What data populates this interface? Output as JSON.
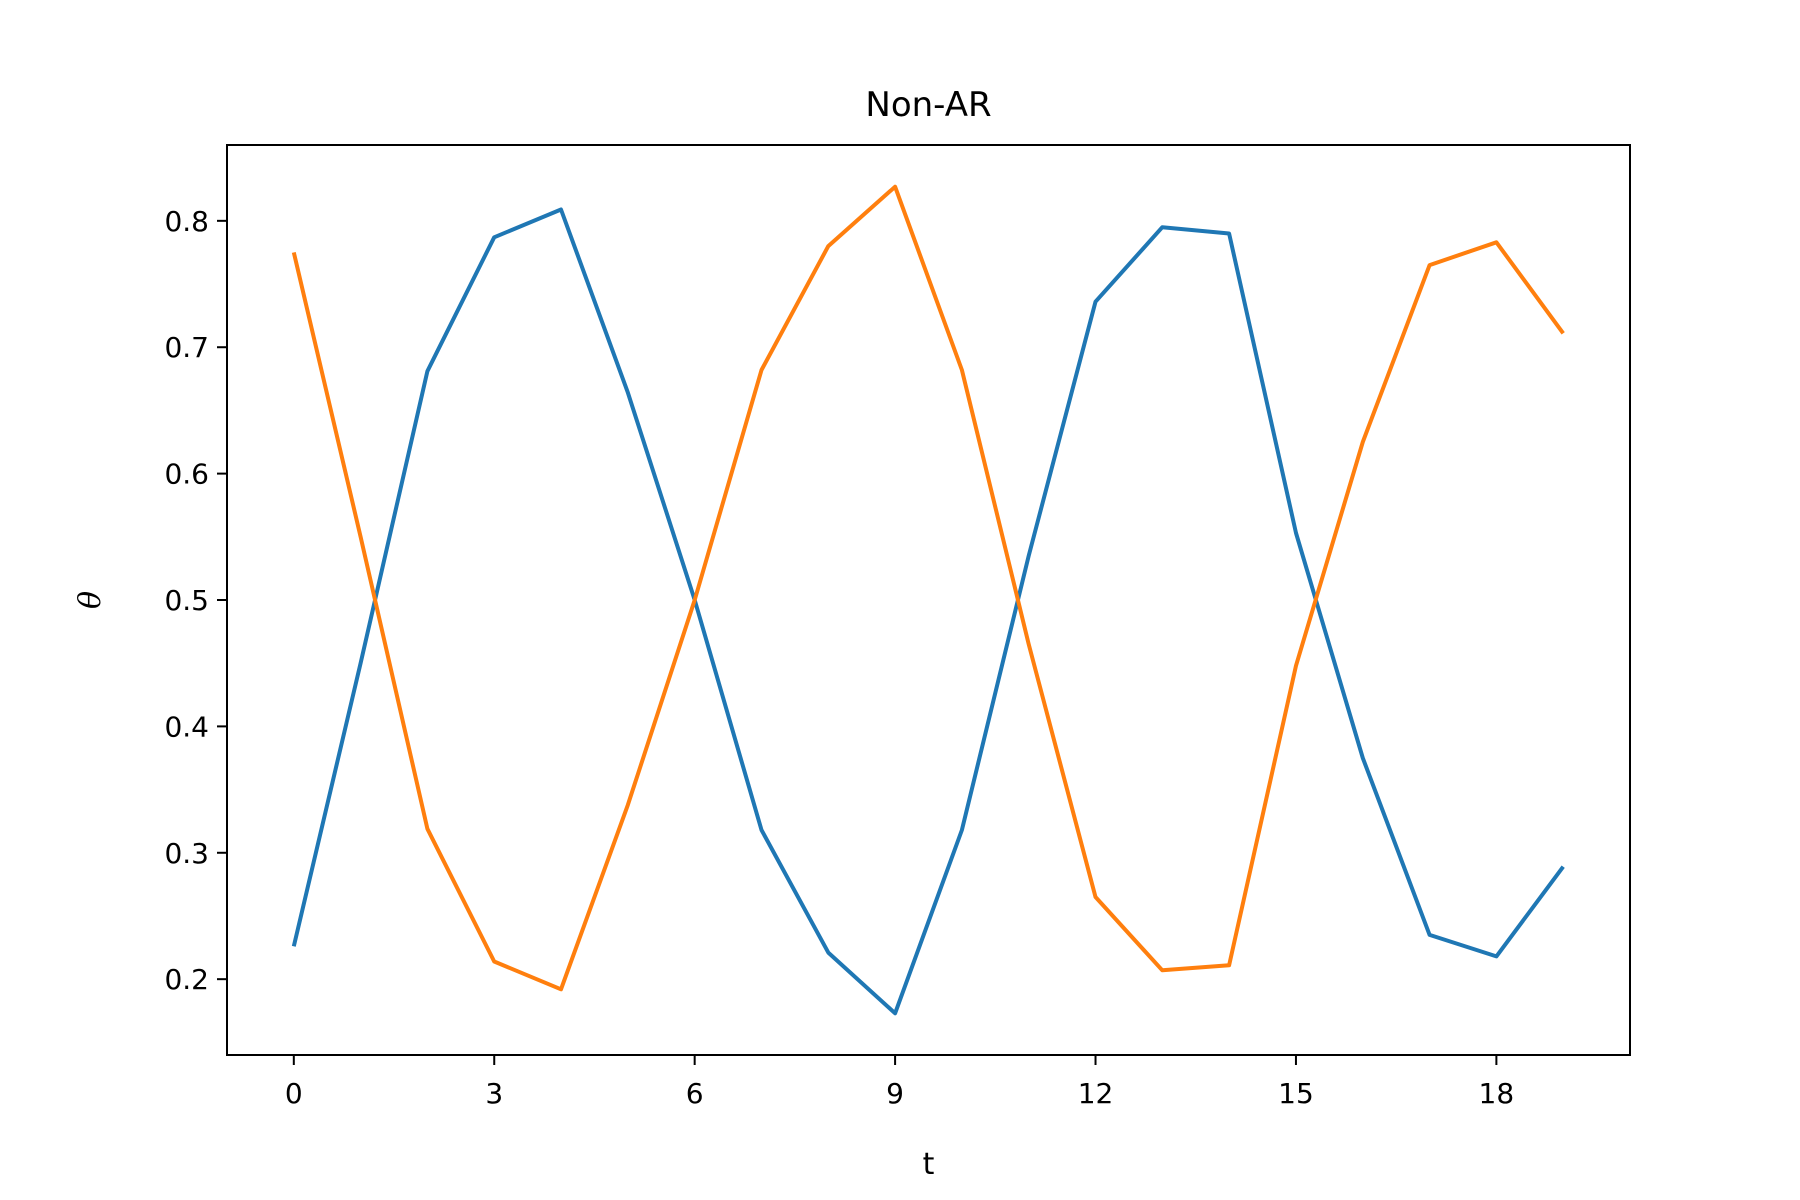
{
  "chart_data": {
    "type": "line",
    "title": "Non-AR",
    "xlabel": "t",
    "ylabel": "θ",
    "xlim": [
      -1,
      20
    ],
    "ylim": [
      0.14,
      0.86
    ],
    "xticks": [
      0,
      3,
      6,
      9,
      12,
      15,
      18
    ],
    "yticks": [
      0.2,
      0.3,
      0.4,
      0.5,
      0.6,
      0.7,
      0.8
    ],
    "grid": false,
    "legend": "none",
    "x": [
      0,
      1,
      2,
      3,
      4,
      5,
      6,
      7,
      8,
      9,
      10,
      11,
      12,
      13,
      14,
      15,
      16,
      17,
      18,
      19
    ],
    "series": [
      {
        "color": "#1f77b4",
        "values": [
          0.226,
          0.45,
          0.681,
          0.787,
          0.809,
          0.664,
          0.5,
          0.318,
          0.221,
          0.173,
          0.318,
          0.535,
          0.736,
          0.795,
          0.79,
          0.553,
          0.375,
          0.235,
          0.218,
          0.289
        ]
      },
      {
        "color": "#ff7f0e",
        "values": [
          0.775,
          0.55,
          0.319,
          0.214,
          0.192,
          0.338,
          0.5,
          0.682,
          0.78,
          0.827,
          0.682,
          0.465,
          0.265,
          0.207,
          0.211,
          0.448,
          0.625,
          0.765,
          0.783,
          0.711
        ]
      }
    ]
  }
}
